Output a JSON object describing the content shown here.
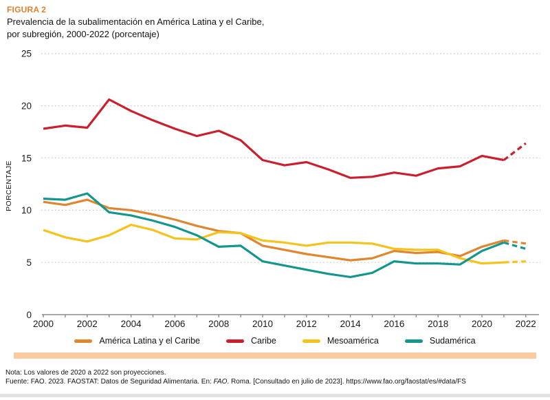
{
  "header": {
    "figure_label": "FIGURA 2",
    "title": "Prevalencia de la subalimentación en América Latina y el Caribe, por subregión, 2000-2022 (porcentaje)"
  },
  "chart_data": {
    "type": "line",
    "x": [
      2000,
      2001,
      2002,
      2003,
      2004,
      2005,
      2006,
      2007,
      2008,
      2009,
      2010,
      2011,
      2012,
      2013,
      2014,
      2015,
      2016,
      2017,
      2018,
      2019,
      2020,
      2021,
      2022
    ],
    "series": [
      {
        "name": "América Latina y el Caribe",
        "color": "#E0862F",
        "values": [
          10.8,
          10.5,
          11.0,
          10.2,
          10.0,
          9.6,
          9.1,
          8.5,
          8.0,
          7.8,
          6.6,
          6.2,
          5.8,
          5.5,
          5.2,
          5.4,
          6.1,
          5.9,
          6.0,
          5.6,
          6.5,
          7.1,
          6.8
        ]
      },
      {
        "name": "Caribe",
        "color": "#CA1F2D",
        "values": [
          17.8,
          18.1,
          17.9,
          20.6,
          19.5,
          18.6,
          17.8,
          17.1,
          17.6,
          16.7,
          14.8,
          14.3,
          14.6,
          13.9,
          13.1,
          13.2,
          13.6,
          13.3,
          14.0,
          14.2,
          15.2,
          14.8,
          16.4
        ]
      },
      {
        "name": "Mesoamérica",
        "color": "#F6C31C",
        "values": [
          8.1,
          7.4,
          7.0,
          7.6,
          8.6,
          8.1,
          7.3,
          7.2,
          7.9,
          7.8,
          7.1,
          6.9,
          6.6,
          6.9,
          6.9,
          6.8,
          6.3,
          6.2,
          6.2,
          5.4,
          4.9,
          5.0,
          5.1
        ]
      },
      {
        "name": "Sudamérica",
        "color": "#13968E",
        "values": [
          11.1,
          11.0,
          11.6,
          9.8,
          9.5,
          9.0,
          8.4,
          7.6,
          6.5,
          6.6,
          5.1,
          4.7,
          4.3,
          3.9,
          3.6,
          4.0,
          5.1,
          4.9,
          4.9,
          4.8,
          6.1,
          6.9,
          6.3
        ]
      }
    ],
    "title": "Prevalencia de la subalimentación en América Latina y el Caribe, por subregión, 2000-2022 (porcentaje)",
    "xlabel": "",
    "ylabel": "PORCENTAJE",
    "ylim": [
      0,
      25
    ],
    "yticks": [
      0,
      5,
      10,
      15,
      20,
      25
    ],
    "xticks": [
      2000,
      2002,
      2004,
      2006,
      2008,
      2010,
      2012,
      2014,
      2016,
      2018,
      2020,
      2022
    ],
    "grid": "horizontal-dotted",
    "legend_position": "bottom",
    "projection_start": 2021,
    "projection_note": "dashed segments from 2021 to 2022"
  },
  "footer": {
    "note": "Nota: Los valores de 2020 a 2022 son proyecciones.",
    "source_prefix": "Fuente: FAO. 2023. FAOSTAT: Datos de Seguridad Alimentaria. En: ",
    "source_italic": "FAO",
    "source_suffix": ". Roma. [Consultado en julio de 2023]. https://www.fao.org/faostat/es/#data/FS"
  },
  "colors": {
    "figure_label": "#E0802C",
    "accent_bar": "#F8CBA1",
    "axis_line": "#8a8a8a",
    "gridline": "#c9c9c9",
    "tick_text": "#1a1a1a"
  }
}
